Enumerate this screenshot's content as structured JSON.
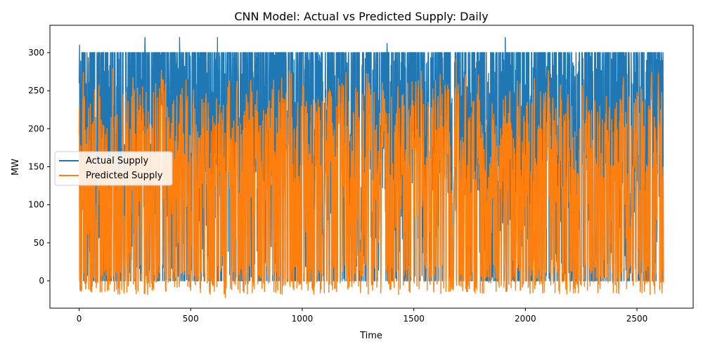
{
  "chart_data": {
    "type": "line",
    "title": "CNN Model: Actual vs Predicted Supply: Daily",
    "xlabel": "Time",
    "ylabel": "MW",
    "xlim": [
      -131,
      2752
    ],
    "ylim": [
      -36,
      336
    ],
    "x_ticks": [
      0,
      500,
      1000,
      1500,
      2000,
      2500
    ],
    "y_ticks": [
      0,
      50,
      100,
      150,
      200,
      250,
      300
    ],
    "grid": false,
    "legend_position": "center-left",
    "series": [
      {
        "name": "Actual Supply",
        "color": "#1f77b4",
        "n_points": 2620,
        "typical_range": [
          0,
          300
        ],
        "peak_values": [
          310,
          320,
          320,
          320,
          312,
          320
        ],
        "x_peaks": [
          2,
          295,
          450,
          620,
          1380,
          1910
        ]
      },
      {
        "name": "Predicted Supply",
        "color": "#ff7f0e",
        "n_points": 2620,
        "typical_range": [
          -20,
          285
        ],
        "min_value": -22,
        "max_value": 292
      }
    ]
  }
}
